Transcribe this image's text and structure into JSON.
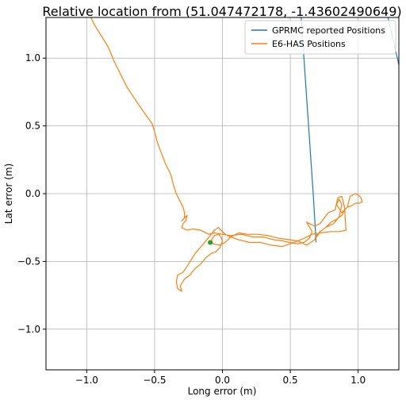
{
  "chart_data": {
    "type": "line",
    "title": "Relative location from (51.047472178, -1.43602490649)",
    "xlabel": "Long error (m)",
    "ylabel": "Lat error (m)",
    "xlim": [
      -1.3,
      1.3
    ],
    "ylim": [
      -1.3,
      1.3
    ],
    "xticks": [
      -1.0,
      -0.5,
      0.0,
      0.5,
      1.0
    ],
    "xtick_labels": [
      "−1.0",
      "−0.5",
      "0.0",
      "0.5",
      "1.0"
    ],
    "yticks": [
      -1.0,
      -0.5,
      0.0,
      0.5,
      1.0
    ],
    "ytick_labels": [
      "−1.0",
      "−0.5",
      "0.0",
      "0.5",
      "1.0"
    ],
    "grid": true,
    "legend_position": "top-right",
    "series": [
      {
        "name": "GPRMC reported Positions",
        "color": "#1f77b4",
        "style": "line",
        "x": [
          0.58,
          0.67,
          0.69
        ],
        "y": [
          1.3,
          -0.02,
          -0.36
        ]
      },
      {
        "name": "GPRMC reported Positions",
        "color": "#1f77b4",
        "style": "line",
        "x": [
          1.22,
          1.3
        ],
        "y": [
          1.3,
          0.95
        ]
      },
      {
        "name": "E6-HAS Positions",
        "color": "#ff7f0e",
        "style": "line",
        "x": [
          -0.97,
          -0.94,
          -0.84,
          -0.8,
          -0.75,
          -0.7,
          -0.62,
          -0.55,
          -0.52,
          -0.5,
          -0.48,
          -0.45,
          -0.42,
          -0.38,
          -0.36,
          -0.34,
          -0.32,
          -0.29,
          -0.28,
          -0.28,
          -0.3,
          -0.26,
          -0.27,
          -0.29,
          -0.3,
          -0.26,
          -0.22,
          -0.16,
          -0.1,
          -0.06,
          0.0,
          0.06,
          0.14,
          0.22,
          0.3,
          0.38,
          0.45,
          0.5,
          0.55,
          0.6,
          0.64,
          0.66,
          0.62,
          0.68,
          0.72,
          0.78,
          0.83,
          0.85,
          0.88,
          0.9,
          0.91,
          0.86,
          0.8,
          0.72,
          0.66,
          0.6,
          0.55,
          0.5,
          0.44,
          0.36,
          0.28,
          0.2,
          0.12,
          0.06,
          0.02,
          0.0,
          -0.03,
          -0.06,
          -0.09,
          -0.14,
          -0.2,
          -0.25,
          -0.29,
          -0.33,
          -0.34,
          -0.33,
          -0.3,
          -0.31,
          -0.28,
          -0.24,
          -0.2,
          -0.16,
          -0.12,
          -0.08,
          -0.05,
          -0.02,
          0.0,
          -0.01,
          -0.03,
          -0.06,
          -0.08,
          -0.07,
          -0.02,
          0.02,
          0.06,
          0.12,
          0.18,
          0.26,
          0.34,
          0.42,
          0.5,
          0.56,
          0.62,
          0.68,
          0.72,
          0.76,
          0.82,
          0.86,
          0.88,
          0.86,
          0.84,
          0.88,
          0.92,
          0.94,
          0.98,
          1.0,
          1.02,
          1.03,
          1.01,
          0.98,
          0.95,
          0.92,
          0.9,
          0.88,
          0.84,
          0.8,
          0.76,
          0.72,
          0.7,
          0.68
        ],
        "y": [
          1.3,
          1.24,
          1.08,
          0.98,
          0.88,
          0.78,
          0.66,
          0.56,
          0.52,
          0.46,
          0.38,
          0.3,
          0.22,
          0.14,
          0.06,
          0.0,
          -0.04,
          -0.1,
          -0.14,
          -0.18,
          -0.2,
          -0.16,
          -0.2,
          -0.22,
          -0.25,
          -0.27,
          -0.26,
          -0.27,
          -0.3,
          -0.29,
          -0.3,
          -0.31,
          -0.3,
          -0.32,
          -0.32,
          -0.34,
          -0.35,
          -0.36,
          -0.37,
          -0.36,
          -0.33,
          -0.28,
          -0.21,
          -0.24,
          -0.22,
          -0.14,
          -0.12,
          -0.03,
          -0.02,
          -0.1,
          -0.27,
          -0.28,
          -0.28,
          -0.29,
          -0.3,
          -0.33,
          -0.35,
          -0.37,
          -0.39,
          -0.38,
          -0.36,
          -0.36,
          -0.34,
          -0.32,
          -0.3,
          -0.28,
          -0.25,
          -0.27,
          -0.31,
          -0.37,
          -0.44,
          -0.52,
          -0.58,
          -0.6,
          -0.65,
          -0.7,
          -0.72,
          -0.68,
          -0.63,
          -0.6,
          -0.55,
          -0.52,
          -0.47,
          -0.44,
          -0.43,
          -0.4,
          -0.35,
          -0.32,
          -0.3,
          -0.31,
          -0.34,
          -0.37,
          -0.38,
          -0.36,
          -0.32,
          -0.29,
          -0.3,
          -0.3,
          -0.31,
          -0.33,
          -0.34,
          -0.35,
          -0.38,
          -0.34,
          -0.28,
          -0.25,
          -0.22,
          -0.17,
          -0.08,
          -0.04,
          -0.08,
          -0.14,
          -0.1,
          -0.02,
          0.0,
          -0.01,
          -0.03,
          -0.06,
          -0.07,
          -0.07,
          -0.09,
          -0.1,
          -0.12,
          -0.16,
          -0.19,
          -0.21,
          -0.25,
          -0.28,
          -0.3,
          -0.33
        ]
      }
    ],
    "markers": [
      {
        "x": -0.09,
        "y": -0.36,
        "color": "#2ca02c"
      }
    ]
  }
}
